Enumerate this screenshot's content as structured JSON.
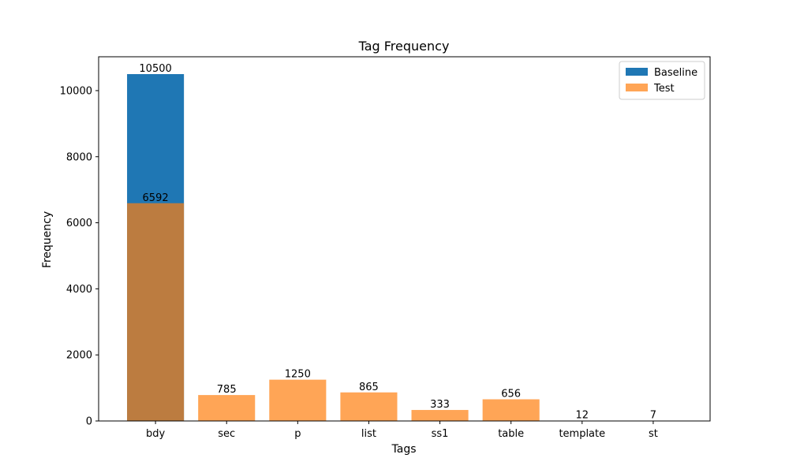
{
  "chart_data": {
    "type": "bar",
    "title": "Tag Frequency",
    "xlabel": "Tags",
    "ylabel": "Frequency",
    "categories": [
      "bdy",
      "sec",
      "p",
      "list",
      "ss1",
      "table",
      "template",
      "st"
    ],
    "series": [
      {
        "name": "Baseline",
        "color": "#1f77b4",
        "values": [
          10500,
          null,
          null,
          null,
          null,
          null,
          null,
          null
        ]
      },
      {
        "name": "Test",
        "color": "#ff7f0e",
        "values": [
          6592,
          785,
          1250,
          865,
          333,
          656,
          12,
          7
        ]
      }
    ],
    "data_labels": [
      "10500",
      "6592",
      "785",
      "1250",
      "865",
      "333",
      "656",
      "12",
      "7"
    ],
    "ylim": [
      0,
      11025
    ],
    "yticks": [
      0,
      2000,
      4000,
      6000,
      8000,
      10000
    ],
    "ytick_labels": [
      "0",
      "2000",
      "4000",
      "6000",
      "8000",
      "10000"
    ],
    "test_opacity": 0.7,
    "grid": false,
    "legend_position": "top-right"
  }
}
